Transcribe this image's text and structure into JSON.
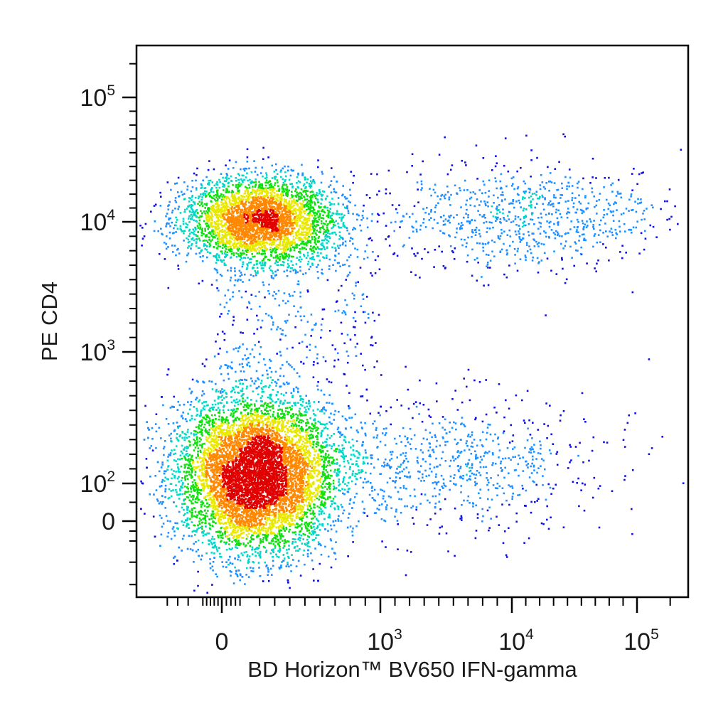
{
  "chart_data": {
    "type": "scatter",
    "style": "density-colored flow cytometry dot plot",
    "title": "",
    "xlabel": "BD Horizon™ BV650 IFN-gamma",
    "ylabel": "PE CD4",
    "x_scale": "biexponential (logicle)",
    "y_scale": "biexponential (logicle)",
    "grid": false,
    "legend": "none",
    "x_ticks": [
      {
        "value": 0,
        "base": "0",
        "exp": ""
      },
      {
        "value": 1000,
        "base": "10",
        "exp": "3"
      },
      {
        "value": 10000,
        "base": "10",
        "exp": "4"
      },
      {
        "value": 100000,
        "base": "10",
        "exp": "5"
      }
    ],
    "y_ticks": [
      {
        "value": 0,
        "base": "0",
        "exp": ""
      },
      {
        "value": 100,
        "base": "10",
        "exp": "2"
      },
      {
        "value": 1000,
        "base": "10",
        "exp": "3"
      },
      {
        "value": 10000,
        "base": "10",
        "exp": "4"
      },
      {
        "value": 100000,
        "base": "10",
        "exp": "5"
      }
    ],
    "xlim": [
      -450,
      250000
    ],
    "ylim": [
      -350,
      250000
    ],
    "density_colors": [
      "#1010e0",
      "#1e90ff",
      "#00d8c8",
      "#10e010",
      "#e8e800",
      "#ff8800",
      "#e00000"
    ],
    "populations": [
      {
        "description": "CD4-low, IFN-gamma-negative",
        "x_center": 170,
        "y_center": 170,
        "relative_count": 0.62
      },
      {
        "description": "CD4-high, IFN-gamma-negative",
        "x_center": 200,
        "y_center": 12000,
        "relative_count": 0.26
      },
      {
        "description": "CD4-high, IFN-gamma-positive",
        "x_center": 15000,
        "y_center": 13000,
        "relative_count": 0.06
      },
      {
        "description": "CD4-low, IFN-gamma-positive",
        "x_center": 5000,
        "y_center": 250,
        "relative_count": 0.06
      }
    ]
  }
}
